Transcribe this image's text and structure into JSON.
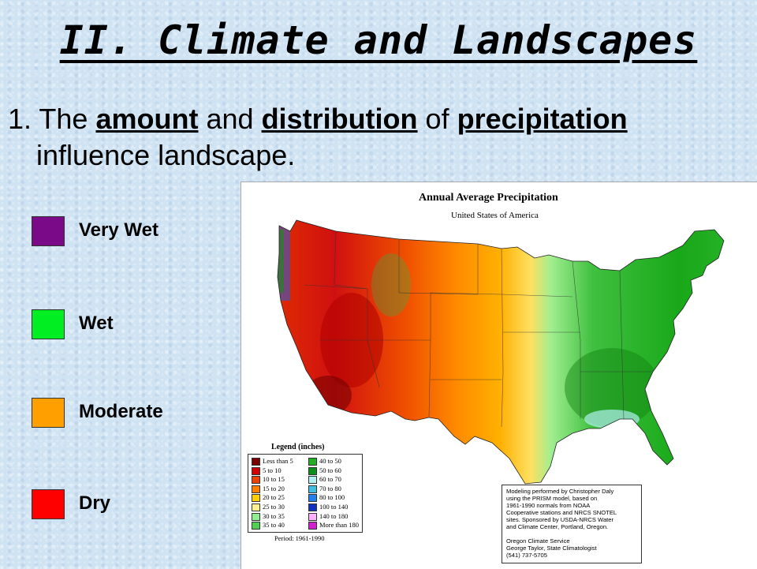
{
  "slide": {
    "title": "II. Climate and Landscapes",
    "bullet": {
      "number": "1.",
      "w1": "The",
      "k1": "amount",
      "w2": "and",
      "k2": "distribution",
      "w3": "of",
      "k3": "precipitation",
      "line2": "influence landscape."
    },
    "legend": [
      {
        "label": "Very Wet",
        "color": "#7b0a88"
      },
      {
        "label": "Wet",
        "color": "#00ee22"
      },
      {
        "label": "Moderate",
        "color": "#ffa000"
      },
      {
        "label": "Dry",
        "color": "#ff0000"
      }
    ]
  },
  "map": {
    "title": "Annual Average Precipitation",
    "subtitle": "United States of America",
    "legend_title": "Legend (inches)",
    "legend_left": [
      {
        "label": "Less than 5",
        "color": "#7a0000"
      },
      {
        "label": "5 to 10",
        "color": "#d20000"
      },
      {
        "label": "10 to 15",
        "color": "#f04000"
      },
      {
        "label": "15 to 20",
        "color": "#ff8000"
      },
      {
        "label": "20 to 25",
        "color": "#ffd000"
      },
      {
        "label": "25 to 30",
        "color": "#fff090"
      },
      {
        "label": "30 to 35",
        "color": "#90ee90"
      },
      {
        "label": "35 to 40",
        "color": "#50d050"
      }
    ],
    "legend_right": [
      {
        "label": "40 to 50",
        "color": "#20b020"
      },
      {
        "label": "50 to 60",
        "color": "#089018"
      },
      {
        "label": "60 to 70",
        "color": "#b0f0f0"
      },
      {
        "label": "70 to 80",
        "color": "#40c0e0"
      },
      {
        "label": "80 to 100",
        "color": "#2080f0"
      },
      {
        "label": "100 to 140",
        "color": "#1030c0"
      },
      {
        "label": "140 to 180",
        "color": "#ffb0ff"
      },
      {
        "label": "More than 180",
        "color": "#d020d0"
      }
    ],
    "period": "Period: 1961-1990",
    "credits": [
      "Modeling performed by Christopher Daly",
      "using the PRISM model, based on",
      "1961-1990 normals from NOAA",
      "Cooperative stations and NRCS SNOTEL",
      "sites. Sponsored by USDA-NRCS Water",
      "and Climate Center, Portland, Oregon.",
      "",
      "Oregon Climate Service",
      "George Taylor, State Climatologist",
      "(541) 737-5705"
    ]
  }
}
